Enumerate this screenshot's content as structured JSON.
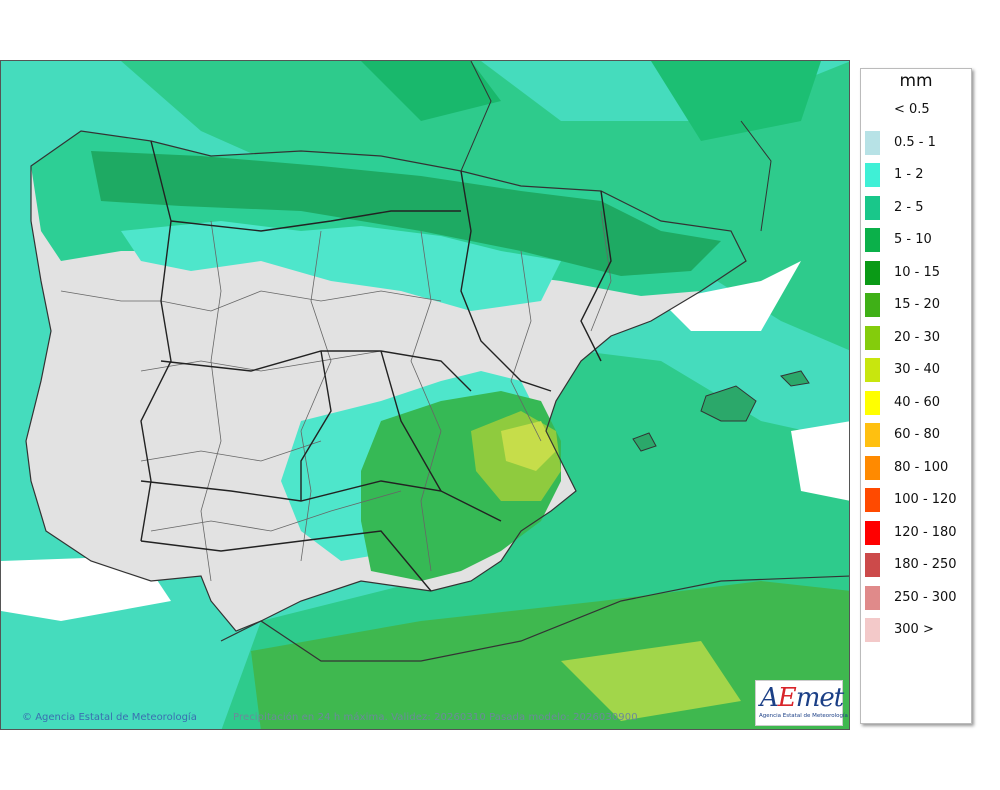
{
  "map": {
    "unit": "mm",
    "credit": "Agencia Estatal de Meteorología",
    "caption": "Precipitación en 24 h máxima. Validez: 20260310 Pasada modelo: 2026030900",
    "logo_text": "AEmet",
    "logo_sub": "Agencia Estatal de Meteorología"
  },
  "legend": [
    {
      "label": "< 0.5",
      "color": "#ffffff"
    },
    {
      "label": "0.5 - 1",
      "color": "#b7e2e6"
    },
    {
      "label": "1 - 2",
      "color": "#3ff0d6"
    },
    {
      "label": "2 - 5",
      "color": "#19c78a"
    },
    {
      "label": "5 - 10",
      "color": "#0bb04a"
    },
    {
      "label": "10 - 15",
      "color": "#0a9a16"
    },
    {
      "label": "15 - 20",
      "color": "#3fb017"
    },
    {
      "label": "20 - 30",
      "color": "#84cc0c"
    },
    {
      "label": "30 - 40",
      "color": "#c8e60e"
    },
    {
      "label": "40 - 60",
      "color": "#ffff00"
    },
    {
      "label": "60 - 80",
      "color": "#ffc010"
    },
    {
      "label": "80 - 100",
      "color": "#ff8a00"
    },
    {
      "label": "100 - 120",
      "color": "#ff4a00"
    },
    {
      "label": "120 - 180",
      "color": "#ff0000"
    },
    {
      "label": "180 - 250",
      "color": "#cc4a4a"
    },
    {
      "label": "250 - 300",
      "color": "#e08a8a"
    },
    {
      "label": "300 >",
      "color": "#f3c9c9"
    }
  ]
}
